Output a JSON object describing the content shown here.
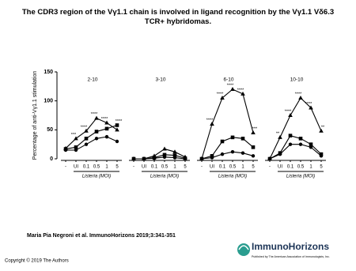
{
  "title": "The CDR3 region of the Vγ1.1 chain is involved in ligand recognition by the Vγ1.1 Vδ6.3 TCR+ hybridomas.",
  "y_label": "Percentage of anti-Vγ1.1 stimulation",
  "citation": "Maria Pia Negroni et al. ImmunoHorizons 2019;3:341-351",
  "copyright": "Copyright © 2019 The Authors",
  "logo": {
    "name": "ImmunoHorizons",
    "publisher": "Published by The American Association of Immunologists, Inc."
  },
  "chart_data": [
    {
      "type": "line",
      "title": "2-10",
      "x_label": "Listeria (MOI)",
      "categories": [
        "-",
        "UI",
        "0.1",
        "0.5",
        "1",
        "5"
      ],
      "ylim": [
        0,
        150
      ],
      "yticks": [
        0,
        50,
        100,
        150
      ],
      "series": [
        {
          "marker": "triangle",
          "color": "#000000",
          "values": [
            18,
            35,
            48,
            70,
            62,
            50
          ]
        },
        {
          "marker": "square",
          "color": "#000000",
          "values": [
            17,
            20,
            35,
            47,
            52,
            58
          ]
        },
        {
          "marker": "circle",
          "color": "#000000",
          "values": [
            15,
            15,
            25,
            35,
            38,
            30
          ]
        }
      ],
      "stars": [
        null,
        "***",
        "****",
        "****",
        "****",
        "****"
      ]
    },
    {
      "type": "line",
      "title": "3-10",
      "x_label": "Listeria (MOI)",
      "categories": [
        "-",
        "UI",
        "0.1",
        "0.5",
        "1",
        "5"
      ],
      "ylim": [
        0,
        150
      ],
      "series": [
        {
          "marker": "triangle",
          "color": "#000000",
          "values": [
            0,
            0,
            5,
            17,
            12,
            3
          ]
        },
        {
          "marker": "square",
          "color": "#000000",
          "values": [
            0,
            0,
            2,
            7,
            6,
            1
          ]
        },
        {
          "marker": "circle",
          "color": "#000000",
          "values": [
            0,
            0,
            1,
            3,
            2,
            0
          ]
        }
      ]
    },
    {
      "type": "line",
      "title": "6-10",
      "x_label": "Listeria (MOI)",
      "categories": [
        "-",
        "UI",
        "0.1",
        "0.5",
        "1",
        "5"
      ],
      "ylim": [
        0,
        150
      ],
      "series": [
        {
          "marker": "triangle",
          "color": "#000000",
          "values": [
            0,
            60,
            105,
            120,
            112,
            45
          ]
        },
        {
          "marker": "square",
          "color": "#000000",
          "values": [
            0,
            5,
            30,
            37,
            35,
            20
          ]
        },
        {
          "marker": "circle",
          "color": "#000000",
          "values": [
            0,
            2,
            8,
            12,
            10,
            5
          ]
        }
      ],
      "stars": [
        null,
        "****",
        "****",
        "****",
        "****",
        "***"
      ]
    },
    {
      "type": "line",
      "title": "10-10",
      "x_label": "Listeria (MOI)",
      "categories": [
        "-",
        "UI",
        "0.1",
        "0.5",
        "1",
        "5"
      ],
      "ylim": [
        0,
        150
      ],
      "series": [
        {
          "marker": "triangle",
          "color": "#000000",
          "values": [
            0,
            37,
            75,
            105,
            88,
            48
          ]
        },
        {
          "marker": "square",
          "color": "#000000",
          "values": [
            0,
            10,
            40,
            35,
            25,
            8
          ]
        },
        {
          "marker": "circle",
          "color": "#000000",
          "values": [
            0,
            8,
            25,
            25,
            20,
            5
          ]
        }
      ],
      "stars": [
        null,
        "**",
        "****",
        "****",
        "****",
        "**"
      ]
    }
  ]
}
